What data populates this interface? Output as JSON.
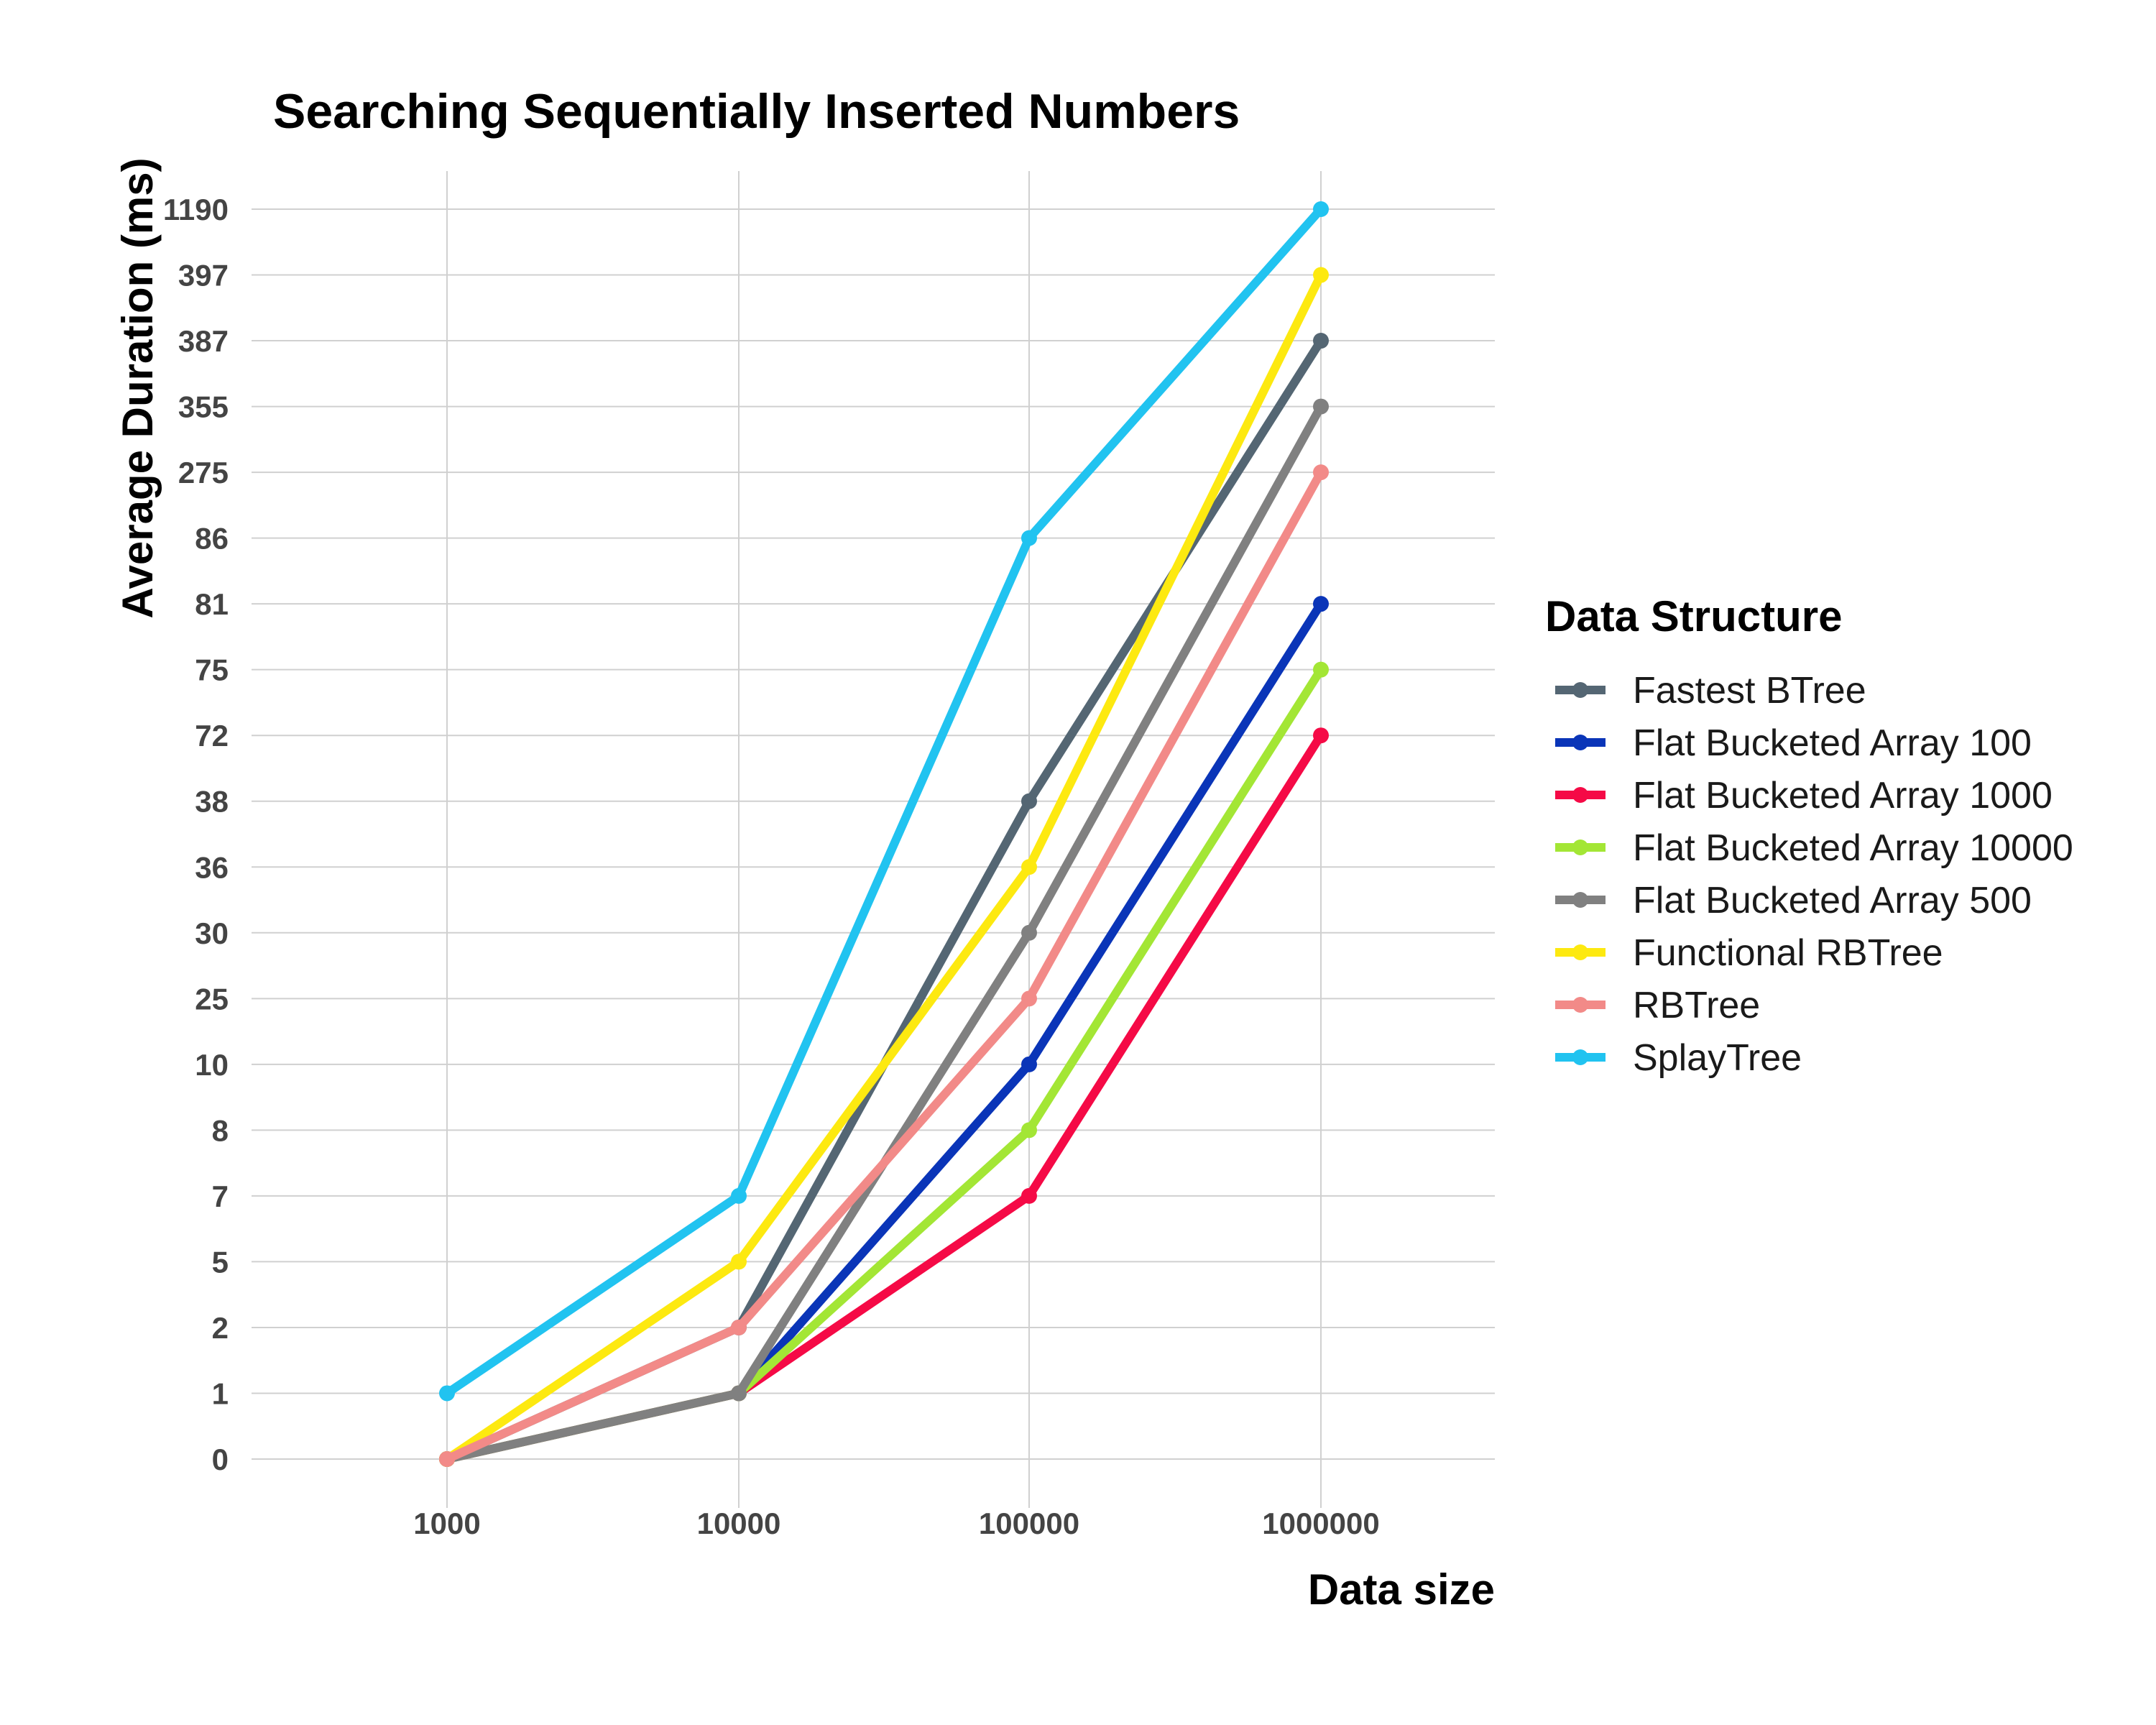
{
  "chart_data": {
    "type": "line",
    "title": "Searching Sequentially Inserted Numbers",
    "xlabel": "Data size",
    "ylabel": "Average Duration (ms)",
    "x_scale": "categorical",
    "y_scale": "categorical",
    "categories": [
      "1000",
      "10000",
      "100000",
      "1000000"
    ],
    "y_ticks": [
      "0",
      "1",
      "2",
      "5",
      "7",
      "8",
      "10",
      "25",
      "30",
      "36",
      "38",
      "72",
      "75",
      "81",
      "86",
      "275",
      "355",
      "387",
      "397",
      "1190"
    ],
    "grid": true,
    "legend": {
      "title": "Data Structure",
      "position": "right"
    },
    "series": [
      {
        "name": "Fastest BTree",
        "color": "#546673",
        "values": [
          0,
          2,
          38,
          387
        ]
      },
      {
        "name": "Flat Bucketed Array 100",
        "color": "#0a35b8",
        "values": [
          0,
          1,
          10,
          81
        ]
      },
      {
        "name": "Flat Bucketed Array 1000",
        "color": "#f50a46",
        "values": [
          0,
          1,
          7,
          72
        ]
      },
      {
        "name": "Flat Bucketed Array 10000",
        "color": "#a3e635",
        "values": [
          0,
          1,
          8,
          75
        ]
      },
      {
        "name": "Flat Bucketed Array 500",
        "color": "#808080",
        "values": [
          0,
          1,
          30,
          355
        ]
      },
      {
        "name": "Functional RBTree",
        "color": "#fde910",
        "values": [
          0,
          5,
          36,
          397
        ]
      },
      {
        "name": "RBTree",
        "color": "#f28a88",
        "values": [
          0,
          2,
          25,
          275
        ]
      },
      {
        "name": "SplayTree",
        "color": "#21c3f0",
        "values": [
          1,
          7,
          86,
          1190
        ]
      }
    ]
  }
}
